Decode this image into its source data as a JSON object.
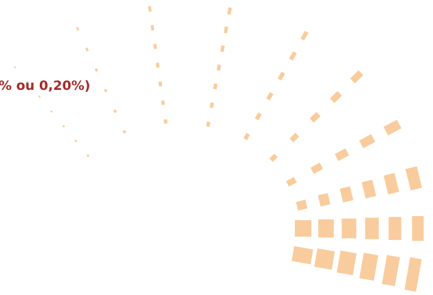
{
  "caption": {
    "text": "% ou 0,20%)"
  },
  "colors": {
    "caption": "#a52a2a",
    "mark": "#f9cc9d"
  },
  "decoration": {
    "name": "radial-dash-fan"
  }
}
